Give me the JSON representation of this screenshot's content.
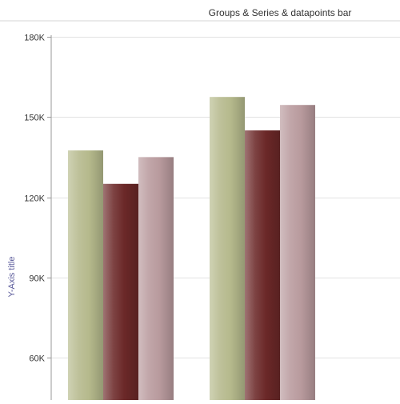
{
  "chart_data": {
    "type": "bar",
    "title": "Groups & Series & datapoints bar",
    "ylabel": "Y-Axis title",
    "xlabel": "",
    "ylim": [
      50000,
      180000
    ],
    "yticks": [
      60000,
      90000,
      120000,
      150000,
      180000
    ],
    "ytick_labels": [
      "60K",
      "90K",
      "120K",
      "150K",
      "180K"
    ],
    "grid": true,
    "categories": [
      "",
      ""
    ],
    "series": [
      {
        "values": [
          137500,
          157500
        ],
        "color": "#b5b98c"
      },
      {
        "values": [
          125000,
          145000
        ],
        "color": "#6b2828"
      },
      {
        "values": [
          135000,
          154500
        ],
        "color": "#b89a9d"
      }
    ]
  }
}
